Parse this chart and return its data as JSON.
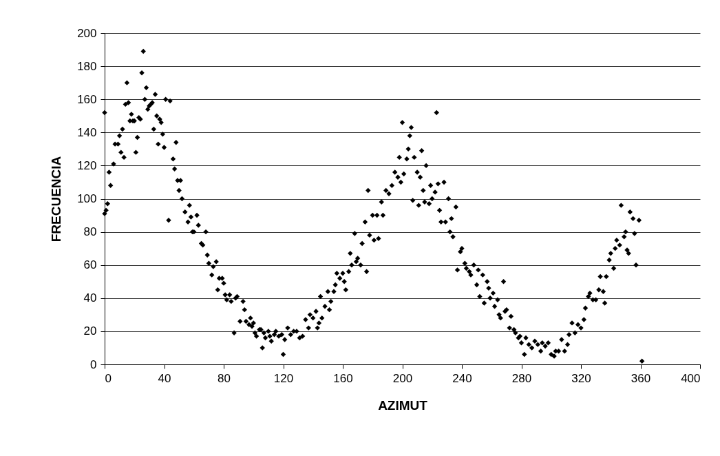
{
  "chart_data": {
    "type": "scatter",
    "xlabel": "AZIMUT",
    "ylabel": "FRECUENCIA",
    "marker": "diamond",
    "grid": "y",
    "xlim": [
      0,
      400
    ],
    "xticks": [
      0,
      40,
      80,
      120,
      160,
      200,
      240,
      280,
      320,
      360,
      400
    ],
    "ylim": [
      0,
      200
    ],
    "yticks": [
      0,
      20,
      40,
      60,
      80,
      100,
      120,
      140,
      160,
      180,
      200
    ],
    "series": [
      {
        "color": "#000000",
        "x": [
          0,
          0,
          1,
          2,
          3,
          4,
          6,
          7,
          9,
          10,
          11,
          12,
          13,
          14,
          15,
          16,
          17,
          18,
          19,
          20,
          21,
          22,
          23,
          24,
          25,
          26,
          27,
          28,
          29,
          30,
          31,
          32,
          33,
          34,
          35,
          36,
          37,
          38,
          39,
          40,
          41,
          43,
          44,
          46,
          47,
          48,
          49,
          50,
          51,
          52,
          54,
          56,
          57,
          58,
          59,
          60,
          62,
          63,
          65,
          66,
          68,
          69,
          70,
          72,
          73,
          75,
          76,
          77,
          79,
          80,
          81,
          82,
          84,
          85,
          87,
          88,
          89,
          91,
          93,
          94,
          95,
          97,
          98,
          99,
          100,
          101,
          102,
          104,
          105,
          106,
          107,
          108,
          110,
          111,
          112,
          114,
          115,
          117,
          119,
          120,
          121,
          123,
          125,
          127,
          129,
          131,
          133,
          135,
          137,
          138,
          140,
          142,
          143,
          144,
          145,
          146,
          148,
          150,
          151,
          152,
          154,
          155,
          156,
          158,
          160,
          161,
          162,
          164,
          165,
          166,
          168,
          169,
          170,
          172,
          173,
          175,
          176,
          177,
          178,
          180,
          181,
          183,
          184,
          186,
          187,
          189,
          191,
          193,
          195,
          197,
          198,
          199,
          200,
          201,
          203,
          204,
          205,
          206,
          207,
          208,
          210,
          211,
          212,
          213,
          214,
          215,
          216,
          218,
          219,
          220,
          222,
          223,
          224,
          225,
          226,
          228,
          229,
          231,
          232,
          233,
          234,
          236,
          237,
          239,
          240,
          242,
          243,
          245,
          246,
          248,
          250,
          251,
          252,
          254,
          255,
          257,
          258,
          259,
          261,
          262,
          264,
          265,
          266,
          268,
          269,
          270,
          272,
          273,
          275,
          276,
          278,
          279,
          280,
          282,
          283,
          285,
          287,
          289,
          291,
          293,
          294,
          296,
          298,
          300,
          302,
          303,
          305,
          307,
          309,
          311,
          312,
          314,
          316,
          318,
          320,
          322,
          323,
          325,
          326,
          328,
          330,
          332,
          333,
          335,
          336,
          337,
          339,
          340,
          342,
          343,
          344,
          346,
          347,
          349,
          350,
          351,
          352,
          353,
          355,
          356,
          357,
          359,
          361
        ],
        "values": [
          152,
          91,
          93,
          97,
          116,
          108,
          121,
          133,
          133,
          138,
          128,
          142,
          125,
          157,
          170,
          158,
          147,
          151,
          147,
          147,
          128,
          137,
          149,
          148,
          176,
          189,
          160,
          167,
          154,
          156,
          157,
          158,
          142,
          163,
          150,
          133,
          148,
          146,
          139,
          131,
          160,
          87,
          159,
          124,
          118,
          134,
          111,
          105,
          111,
          100,
          92,
          86,
          96,
          89,
          80,
          80,
          90,
          84,
          73,
          72,
          80,
          66,
          61,
          54,
          59,
          62,
          45,
          52,
          52,
          49,
          42,
          39,
          42,
          38,
          19,
          40,
          41,
          26,
          38,
          33,
          26,
          24,
          28,
          23,
          25,
          19,
          17,
          21,
          21,
          10,
          19,
          16,
          20,
          17,
          14,
          18,
          20,
          17,
          18,
          6,
          15,
          22,
          18,
          20,
          20,
          16,
          17,
          27,
          22,
          30,
          28,
          32,
          22,
          25,
          41,
          28,
          35,
          44,
          33,
          38,
          44,
          48,
          55,
          52,
          55,
          50,
          45,
          56,
          67,
          60,
          79,
          62,
          64,
          60,
          73,
          86,
          56,
          105,
          78,
          90,
          75,
          90,
          76,
          98,
          90,
          105,
          103,
          108,
          116,
          113,
          125,
          110,
          146,
          115,
          124,
          130,
          138,
          143,
          99,
          125,
          116,
          96,
          113,
          129,
          105,
          98,
          120,
          97,
          108,
          100,
          104,
          152,
          109,
          93,
          86,
          110,
          86,
          100,
          80,
          88,
          77,
          95,
          57,
          68,
          70,
          61,
          58,
          56,
          54,
          60,
          48,
          57,
          41,
          54,
          37,
          50,
          46,
          40,
          43,
          35,
          39,
          30,
          28,
          50,
          32,
          33,
          22,
          29,
          21,
          19,
          16,
          17,
          13,
          6,
          16,
          12,
          10,
          14,
          12,
          8,
          13,
          11,
          13,
          6,
          5,
          8,
          8,
          15,
          8,
          12,
          18,
          25,
          19,
          24,
          22,
          27,
          34,
          41,
          43,
          39,
          39,
          45,
          53,
          44,
          37,
          53,
          63,
          67,
          58,
          70,
          75,
          72,
          96,
          77,
          80,
          69,
          67,
          92,
          88,
          79,
          60,
          87,
          2
        ]
      }
    ]
  }
}
